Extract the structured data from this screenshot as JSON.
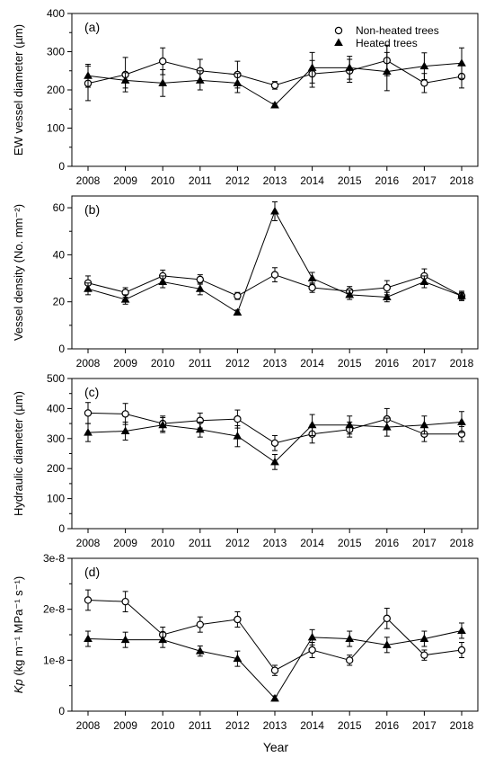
{
  "legend": {
    "open_label": "Non-heated trees",
    "filled_label": "Heated trees"
  },
  "xlabel": "Year",
  "colors": {
    "line": "#000000",
    "open_fill": "#ffffff",
    "filled_fill": "#000000"
  },
  "chart_data": [
    {
      "type": "line",
      "panel": "(a)",
      "ylabel": "EW vessel diameter (µm)",
      "ylim": [
        0,
        400
      ],
      "yticks": [
        0,
        100,
        200,
        300,
        400
      ],
      "ytick_labels": [
        "0",
        "100",
        "200",
        "300",
        "400"
      ],
      "x": [
        2008,
        2009,
        2010,
        2011,
        2012,
        2013,
        2014,
        2015,
        2016,
        2017,
        2018
      ],
      "series": [
        {
          "name": "Non-heated trees",
          "marker": "open-circle",
          "values": [
            217,
            240,
            275,
            250,
            240,
            212,
            242,
            250,
            277,
            218,
            235
          ],
          "err": [
            45,
            45,
            35,
            30,
            35,
            10,
            35,
            30,
            40,
            25,
            30
          ]
        },
        {
          "name": "Heated trees",
          "marker": "filled-triangle",
          "values": [
            237,
            225,
            218,
            225,
            218,
            160,
            258,
            258,
            248,
            262,
            270
          ],
          "err": [
            30,
            20,
            35,
            25,
            25,
            5,
            40,
            30,
            50,
            35,
            40
          ]
        }
      ]
    },
    {
      "type": "line",
      "panel": "(b)",
      "ylabel": "Vessel density (No. mm⁻²)",
      "ylim": [
        0,
        65
      ],
      "yticks": [
        0,
        20,
        40,
        60
      ],
      "ytick_labels": [
        "0",
        "20",
        "40",
        "60"
      ],
      "x": [
        2008,
        2009,
        2010,
        2011,
        2012,
        2013,
        2014,
        2015,
        2016,
        2017,
        2018
      ],
      "series": [
        {
          "name": "Non-heated trees",
          "marker": "open-circle",
          "values": [
            28,
            24,
            31,
            29.5,
            22.5,
            31.5,
            26,
            24.5,
            26,
            31,
            22.5
          ],
          "err": [
            3,
            2,
            2.5,
            2,
            1.5,
            3,
            2,
            2,
            3,
            3,
            1.5
          ]
        },
        {
          "name": "Heated trees",
          "marker": "filled-triangle",
          "values": [
            25.5,
            21,
            28.5,
            25.5,
            15.5,
            58.5,
            30,
            23,
            22,
            28.5,
            22.5
          ],
          "err": [
            2.5,
            2,
            2.5,
            2.5,
            1,
            4,
            2.5,
            2,
            2,
            2.5,
            2
          ]
        }
      ]
    },
    {
      "type": "line",
      "panel": "(c)",
      "ylabel": "Hydraulic diameter (µm)",
      "ylim": [
        0,
        500
      ],
      "yticks": [
        0,
        100,
        200,
        300,
        400,
        500
      ],
      "ytick_labels": [
        "0",
        "100",
        "200",
        "300",
        "400",
        "500"
      ],
      "x": [
        2008,
        2009,
        2010,
        2011,
        2012,
        2013,
        2014,
        2015,
        2016,
        2017,
        2018
      ],
      "series": [
        {
          "name": "Non-heated trees",
          "marker": "open-circle",
          "values": [
            385,
            382,
            350,
            360,
            365,
            285,
            315,
            330,
            365,
            315,
            315
          ],
          "err": [
            35,
            35,
            25,
            25,
            30,
            25,
            30,
            25,
            35,
            25,
            25
          ]
        },
        {
          "name": "Heated trees",
          "marker": "filled-triangle",
          "values": [
            320,
            325,
            345,
            330,
            308,
            222,
            345,
            345,
            338,
            345,
            355
          ],
          "err": [
            30,
            30,
            25,
            25,
            35,
            25,
            35,
            30,
            30,
            30,
            35
          ]
        }
      ]
    },
    {
      "type": "line",
      "panel": "(d)",
      "ylabel": "Kp (kg m⁻¹ MPa⁻¹ s⁻¹)",
      "ylim": [
        0,
        3e-08
      ],
      "yticks": [
        0,
        1e-08,
        2e-08,
        3e-08
      ],
      "ytick_labels": [
        "0",
        "1e-8",
        "2e-8",
        "3e-8"
      ],
      "x": [
        2008,
        2009,
        2010,
        2011,
        2012,
        2013,
        2014,
        2015,
        2016,
        2017,
        2018
      ],
      "series": [
        {
          "name": "Non-heated trees",
          "marker": "open-circle",
          "values": [
            2.18e-08,
            2.15e-08,
            1.5e-08,
            1.7e-08,
            1.8e-08,
            8e-09,
            1.2e-08,
            1e-08,
            1.82e-08,
            1.1e-08,
            1.2e-08
          ],
          "err": [
            2e-09,
            2e-09,
            1.5e-09,
            1.5e-09,
            1.5e-09,
            1e-09,
            1.5e-09,
            1e-09,
            2e-09,
            1e-09,
            1.5e-09
          ]
        },
        {
          "name": "Heated trees",
          "marker": "filled-triangle",
          "values": [
            1.42e-08,
            1.4e-08,
            1.4e-08,
            1.18e-08,
            1.03e-08,
            2.5e-09,
            1.45e-08,
            1.42e-08,
            1.3e-08,
            1.42e-08,
            1.58e-08
          ],
          "err": [
            1.5e-09,
            1.5e-09,
            1.5e-09,
            1e-09,
            1.5e-09,
            5e-10,
            1.5e-09,
            1.5e-09,
            1.5e-09,
            1.5e-09,
            1.5e-09
          ]
        }
      ]
    }
  ]
}
